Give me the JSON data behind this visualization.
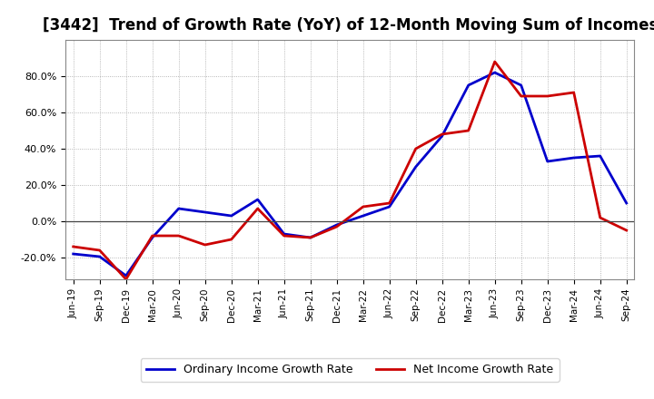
{
  "title": "[3442]  Trend of Growth Rate (YoY) of 12-Month Moving Sum of Incomes",
  "x_labels": [
    "Jun-19",
    "Sep-19",
    "Dec-19",
    "Mar-20",
    "Jun-20",
    "Sep-20",
    "Dec-20",
    "Mar-21",
    "Jun-21",
    "Sep-21",
    "Dec-21",
    "Mar-22",
    "Jun-22",
    "Sep-22",
    "Dec-22",
    "Mar-23",
    "Jun-23",
    "Sep-23",
    "Dec-23",
    "Mar-24",
    "Jun-24",
    "Sep-24"
  ],
  "ordinary_income": [
    -18.0,
    -19.5,
    -30.0,
    -9.0,
    7.0,
    5.0,
    3.0,
    12.0,
    -7.0,
    -9.0,
    -2.0,
    3.0,
    8.0,
    30.0,
    47.0,
    75.0,
    82.0,
    75.0,
    33.0,
    35.0,
    36.0,
    10.0
  ],
  "net_income": [
    -14.0,
    -16.0,
    -32.0,
    -8.0,
    -8.0,
    -13.0,
    -10.0,
    7.0,
    -8.0,
    -9.0,
    -3.0,
    8.0,
    10.0,
    40.0,
    48.0,
    50.0,
    88.0,
    69.0,
    69.0,
    71.0,
    2.0,
    -5.0
  ],
  "ordinary_color": "#0000cc",
  "net_color": "#cc0000",
  "ylim": [
    -32,
    100
  ],
  "yticks": [
    -20.0,
    0.0,
    20.0,
    40.0,
    60.0,
    80.0
  ],
  "background_color": "#ffffff",
  "plot_bg_color": "#ffffff",
  "grid_color": "#999999",
  "legend_labels": [
    "Ordinary Income Growth Rate",
    "Net Income Growth Rate"
  ],
  "title_fontsize": 12,
  "line_width": 2.0
}
